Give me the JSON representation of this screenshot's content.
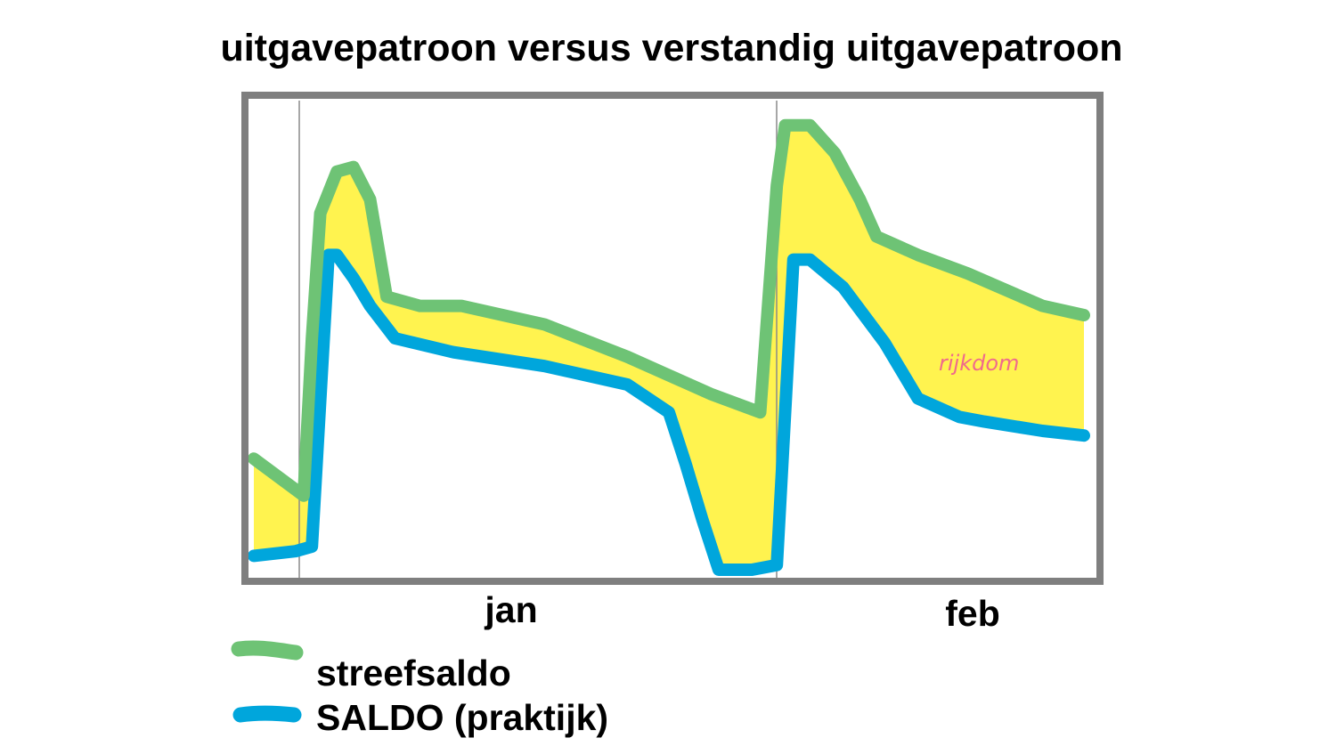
{
  "chart_data": {
    "type": "area",
    "title": "uitgavepatroon versus verstandig uitgavepatroon",
    "xlabel": "",
    "ylabel": "",
    "x_tick_labels": [
      "jan",
      "feb"
    ],
    "grid": false,
    "legend_placement": "bottom-left",
    "series": [
      {
        "name": "streefsaldo",
        "color": "#6ec375",
        "points": [
          [
            0.0,
            0.24
          ],
          [
            0.06,
            0.16
          ],
          [
            0.07,
            0.5
          ],
          [
            0.08,
            0.77
          ],
          [
            0.1,
            0.86
          ],
          [
            0.12,
            0.87
          ],
          [
            0.14,
            0.8
          ],
          [
            0.16,
            0.59
          ],
          [
            0.2,
            0.57
          ],
          [
            0.25,
            0.57
          ],
          [
            0.35,
            0.53
          ],
          [
            0.45,
            0.46
          ],
          [
            0.5,
            0.42
          ],
          [
            0.55,
            0.38
          ],
          [
            0.61,
            0.34
          ],
          [
            0.63,
            0.83
          ],
          [
            0.64,
            0.96
          ],
          [
            0.67,
            0.96
          ],
          [
            0.7,
            0.9
          ],
          [
            0.73,
            0.8
          ],
          [
            0.75,
            0.72
          ],
          [
            0.8,
            0.68
          ],
          [
            0.86,
            0.64
          ],
          [
            0.95,
            0.57
          ],
          [
            1.0,
            0.55
          ]
        ]
      },
      {
        "name": "SALDO (praktijk)",
        "color": "#00a6dc",
        "points": [
          [
            0.0,
            0.03
          ],
          [
            0.05,
            0.04
          ],
          [
            0.07,
            0.05
          ],
          [
            0.09,
            0.68
          ],
          [
            0.1,
            0.68
          ],
          [
            0.12,
            0.63
          ],
          [
            0.14,
            0.57
          ],
          [
            0.17,
            0.5
          ],
          [
            0.24,
            0.47
          ],
          [
            0.35,
            0.44
          ],
          [
            0.45,
            0.4
          ],
          [
            0.5,
            0.34
          ],
          [
            0.52,
            0.23
          ],
          [
            0.54,
            0.11
          ],
          [
            0.56,
            0.0
          ],
          [
            0.6,
            0.0
          ],
          [
            0.63,
            0.01
          ],
          [
            0.65,
            0.67
          ],
          [
            0.67,
            0.67
          ],
          [
            0.71,
            0.61
          ],
          [
            0.76,
            0.49
          ],
          [
            0.8,
            0.37
          ],
          [
            0.85,
            0.33
          ],
          [
            0.88,
            0.32
          ],
          [
            0.95,
            0.3
          ],
          [
            1.0,
            0.29
          ]
        ]
      }
    ],
    "annotations": [
      {
        "text": "rijkdom",
        "color": "#f06a8c"
      }
    ],
    "fill_color": "#fff34f",
    "frame_color": "#7f7f7f"
  }
}
